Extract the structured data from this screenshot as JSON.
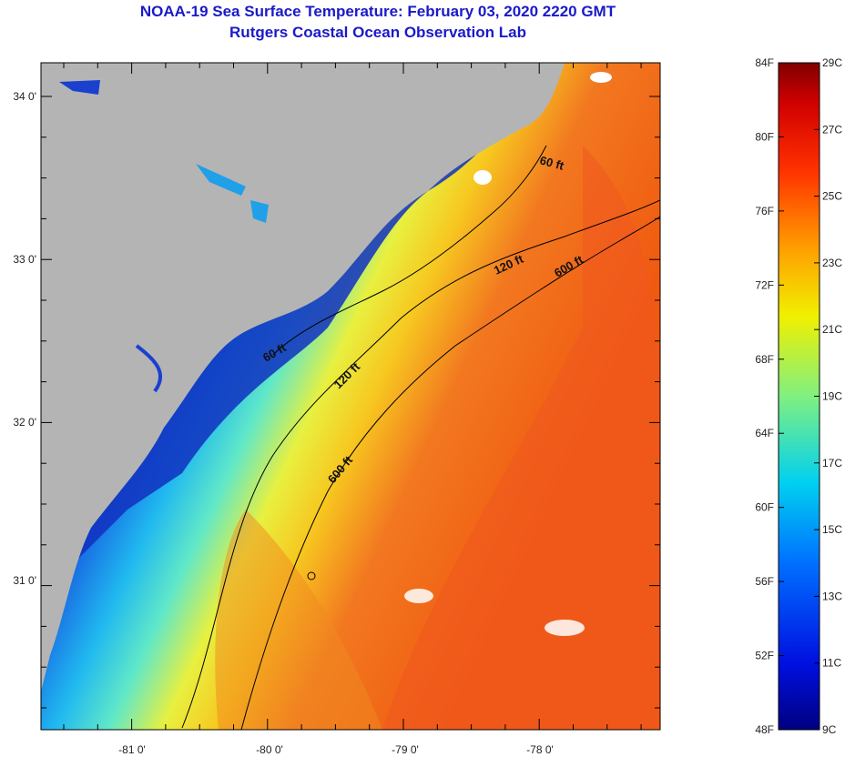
{
  "header": {
    "title": "NOAA-19 Sea Surface Temperature:  February 03, 2020 2220 GMT",
    "subtitle": "Rutgers Coastal Ocean Observation Lab"
  },
  "map": {
    "lat_labels": [
      "34 0'",
      "33 0'",
      "32 0'",
      "31 0'"
    ],
    "lon_labels": [
      "-81 0'",
      "-80 0'",
      "-79 0'",
      "-78 0'"
    ],
    "contours": [
      {
        "label": "60 ft"
      },
      {
        "label": "120 ft"
      },
      {
        "label": "600 ft"
      },
      {
        "label": "60 ft"
      },
      {
        "label": "120 ft"
      },
      {
        "label": "600 ft"
      }
    ]
  },
  "colorbar": {
    "fahrenheit_labels": [
      "84F",
      "80F",
      "76F",
      "72F",
      "68F",
      "64F",
      "60F",
      "56F",
      "52F",
      "48F"
    ],
    "celsius_labels": [
      "29C",
      "27C",
      "25C",
      "23C",
      "21C",
      "19C",
      "17C",
      "15C",
      "13C",
      "11C",
      "9C"
    ]
  },
  "colors": {
    "land": "#b4b4b4",
    "cold": "#0a2ab4",
    "warm": "#f04a10",
    "title": "#1a1ac8"
  }
}
